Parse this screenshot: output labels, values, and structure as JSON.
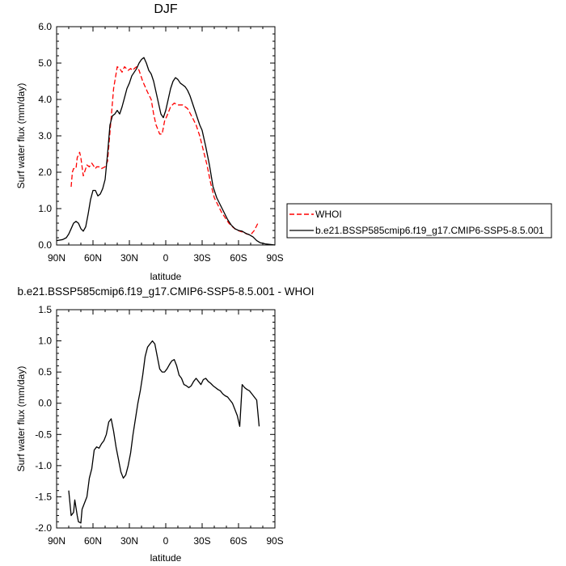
{
  "chart_data": [
    {
      "type": "line",
      "title": "DJF",
      "xlabel": "latitude",
      "ylabel": "Surf water flux (mm/day)",
      "x_ticks": [
        "90N",
        "60N",
        "30N",
        "0",
        "30S",
        "60S",
        "90S"
      ],
      "y_ticks": [
        "0.0",
        "1.0",
        "2.0",
        "3.0",
        "4.0",
        "5.0",
        "6.0"
      ],
      "xlim": [
        -90,
        90
      ],
      "ylim": [
        0,
        6
      ],
      "legend_position": "right",
      "series": [
        {
          "name": "WHOI",
          "color": "#ff0000",
          "dash": "dashed",
          "x": [
            -78,
            -77,
            -76,
            -74,
            -73,
            -71,
            -70,
            -68,
            -67,
            -65,
            -63,
            -61,
            -60,
            -58,
            -57,
            -55,
            -53,
            -50,
            -48,
            -45,
            -43,
            -41,
            -40,
            -38,
            -36,
            -34,
            -31,
            -29,
            -27,
            -26,
            -24,
            -22,
            -19,
            -15,
            -12,
            -10,
            -8,
            -5,
            -3,
            -1,
            1,
            4,
            7,
            10,
            14,
            18,
            22,
            25,
            28,
            31,
            34,
            37,
            40,
            43,
            46,
            49,
            52,
            55,
            58,
            61,
            64,
            67,
            70,
            73,
            76
          ],
          "y": [
            1.6,
            2.0,
            2.1,
            2.1,
            2.4,
            2.55,
            2.4,
            1.9,
            2.0,
            2.2,
            2.15,
            2.25,
            2.2,
            2.1,
            2.15,
            2.15,
            2.1,
            2.15,
            2.3,
            3.5,
            4.3,
            4.7,
            4.9,
            4.85,
            4.75,
            4.9,
            4.8,
            4.85,
            4.8,
            4.85,
            4.9,
            4.8,
            4.5,
            4.2,
            4.0,
            3.6,
            3.3,
            3.05,
            3.05,
            3.4,
            3.55,
            3.8,
            3.9,
            3.85,
            3.85,
            3.75,
            3.5,
            3.3,
            3.0,
            2.6,
            2.2,
            1.7,
            1.3,
            1.1,
            0.9,
            0.75,
            0.6,
            0.5,
            0.42,
            0.38,
            0.35,
            0.3,
            0.28,
            0.4,
            0.6
          ]
        },
        {
          "name": "b.e21.BSSP585cmip6.f19_g17.CMIP6-SSP5-8.5.001",
          "color": "#000000",
          "dash": "solid",
          "x": [
            -90,
            -85,
            -82,
            -80,
            -78,
            -76,
            -74,
            -72,
            -70,
            -68,
            -66,
            -64,
            -62,
            -60,
            -58,
            -56,
            -54,
            -52,
            -50,
            -48,
            -46,
            -44,
            -42,
            -40,
            -38,
            -36,
            -34,
            -32,
            -30,
            -28,
            -26,
            -24,
            -22,
            -20,
            -18,
            -16,
            -14,
            -12,
            -10,
            -8,
            -6,
            -4,
            -2,
            0,
            2,
            4,
            6,
            8,
            10,
            12,
            14,
            16,
            18,
            20,
            22,
            24,
            26,
            28,
            30,
            33,
            36,
            39,
            42,
            45,
            48,
            51,
            54,
            57,
            60,
            63,
            66,
            69,
            72,
            75,
            78,
            80,
            82,
            85,
            88,
            90
          ],
          "y": [
            0.12,
            0.15,
            0.2,
            0.3,
            0.45,
            0.6,
            0.65,
            0.6,
            0.45,
            0.38,
            0.5,
            0.85,
            1.25,
            1.5,
            1.5,
            1.35,
            1.4,
            1.55,
            1.8,
            2.5,
            3.3,
            3.55,
            3.6,
            3.7,
            3.6,
            3.8,
            4.05,
            4.3,
            4.45,
            4.65,
            4.75,
            4.85,
            5.0,
            5.1,
            5.15,
            5.0,
            4.8,
            4.7,
            4.5,
            4.2,
            3.9,
            3.6,
            3.5,
            3.7,
            4.0,
            4.3,
            4.5,
            4.6,
            4.55,
            4.45,
            4.4,
            4.35,
            4.25,
            4.1,
            3.9,
            3.7,
            3.5,
            3.3,
            3.15,
            2.7,
            2.2,
            1.6,
            1.3,
            1.1,
            0.9,
            0.7,
            0.55,
            0.45,
            0.4,
            0.38,
            0.32,
            0.28,
            0.22,
            0.12,
            0.06,
            0.05,
            0.03,
            0.02,
            0.01,
            0.0
          ]
        }
      ]
    },
    {
      "type": "line",
      "title": "b.e21.BSSP585cmip6.f19_g17.CMIP6-SSP5-8.5.001 - WHOI",
      "xlabel": "latitude",
      "ylabel": "Surf water flux (mm/day)",
      "x_ticks": [
        "90N",
        "60N",
        "30N",
        "0",
        "30S",
        "60S",
        "90S"
      ],
      "y_ticks": [
        "-2.0",
        "-1.5",
        "-1.0",
        "-0.5",
        "0.0",
        "0.5",
        "1.0",
        "1.5"
      ],
      "xlim": [
        -90,
        90
      ],
      "ylim": [
        -2,
        1.5
      ],
      "series": [
        {
          "color": "#000000",
          "dash": "solid",
          "x": [
            -80,
            -78,
            -76,
            -75,
            -73,
            -72,
            -70,
            -69,
            -67,
            -65,
            -63,
            -61,
            -59,
            -57,
            -55,
            -53,
            -51,
            -49,
            -47,
            -45,
            -43,
            -41,
            -39,
            -37,
            -35,
            -33,
            -31,
            -29,
            -27,
            -25,
            -23,
            -21,
            -19,
            -17,
            -15,
            -13,
            -11,
            -9,
            -7,
            -5,
            -3,
            -1,
            1,
            3,
            5,
            7,
            9,
            11,
            13,
            15,
            17,
            19,
            21,
            23,
            25,
            27,
            29,
            31,
            33,
            35,
            37,
            39,
            41,
            43,
            45,
            47,
            49,
            51,
            53,
            55,
            57,
            59,
            61,
            63,
            65,
            67,
            69,
            71,
            73,
            75,
            77
          ],
          "y": [
            -1.4,
            -1.8,
            -1.75,
            -1.55,
            -1.8,
            -1.9,
            -1.92,
            -1.7,
            -1.6,
            -1.5,
            -1.2,
            -1.05,
            -0.75,
            -0.7,
            -0.72,
            -0.65,
            -0.6,
            -0.5,
            -0.3,
            -0.25,
            -0.45,
            -0.7,
            -0.9,
            -1.1,
            -1.2,
            -1.15,
            -1.0,
            -0.8,
            -0.5,
            -0.25,
            0.0,
            0.2,
            0.45,
            0.75,
            0.9,
            0.95,
            1.0,
            0.95,
            0.75,
            0.55,
            0.5,
            0.5,
            0.55,
            0.62,
            0.68,
            0.7,
            0.6,
            0.45,
            0.4,
            0.3,
            0.28,
            0.25,
            0.28,
            0.35,
            0.4,
            0.35,
            0.3,
            0.38,
            0.4,
            0.35,
            0.32,
            0.28,
            0.25,
            0.22,
            0.2,
            0.15,
            0.12,
            0.1,
            0.05,
            0.0,
            -0.1,
            -0.2,
            -0.37,
            0.3,
            0.25,
            0.22,
            0.2,
            0.15,
            0.1,
            0.05,
            -0.37
          ]
        }
      ]
    }
  ]
}
